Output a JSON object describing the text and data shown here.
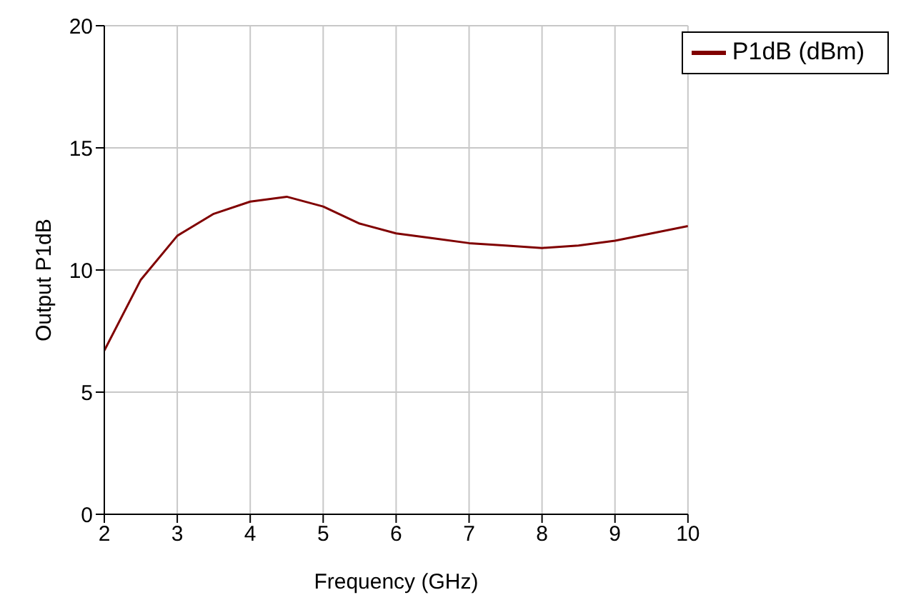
{
  "chart_data": {
    "type": "line",
    "xlabel": "Frequency (GHz)",
    "ylabel": "Output P1dB",
    "x": [
      2,
      2.5,
      3,
      3.5,
      4,
      4.5,
      5,
      5.5,
      6,
      6.5,
      7,
      7.5,
      8,
      8.5,
      9,
      9.5,
      10
    ],
    "series": [
      {
        "name": "P1dB (dBm)",
        "color": "#800000",
        "values": [
          6.7,
          9.6,
          11.4,
          12.3,
          12.8,
          13.0,
          12.6,
          11.9,
          11.5,
          11.3,
          11.1,
          11.0,
          10.9,
          11.0,
          11.2,
          11.5,
          11.8
        ]
      }
    ],
    "xlim": [
      2,
      10
    ],
    "xticks": [
      2,
      3,
      4,
      5,
      6,
      7,
      8,
      9,
      10
    ],
    "ylim": [
      0,
      20
    ],
    "yticks": [
      0,
      5,
      10,
      15,
      20
    ],
    "grid": true,
    "legend": "top right",
    "marker": "none",
    "line_style": "solid"
  }
}
